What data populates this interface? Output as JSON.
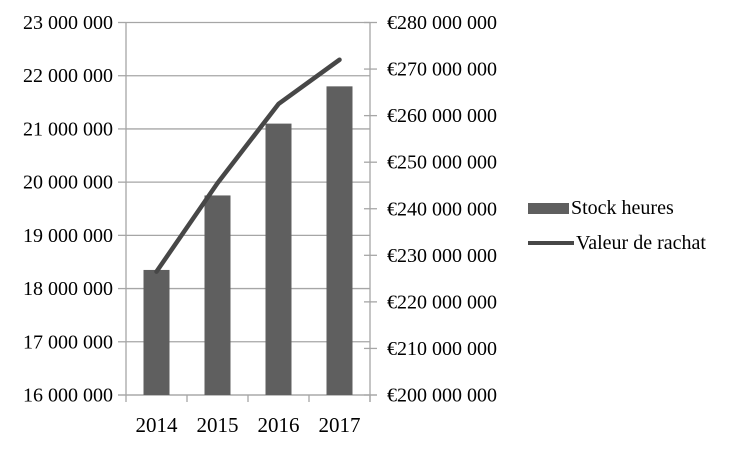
{
  "chart_data": {
    "type": "combo-bar-line-dual-axis",
    "title": "",
    "categories": [
      "2014",
      "2015",
      "2016",
      "2017"
    ],
    "series": [
      {
        "name": "Stock heures",
        "type": "bar",
        "axis": "left",
        "color": "#5f5f5f",
        "values": [
          18350000,
          19750000,
          21100000,
          21800000
        ]
      },
      {
        "name": "Valeur de rachat",
        "type": "line",
        "axis": "right",
        "color": "#474747",
        "values": [
          226500000,
          245500000,
          262500000,
          272000000
        ]
      }
    ],
    "left_axis": {
      "min": 16000000,
      "max": 23000000,
      "step": 1000000,
      "tick_labels": [
        "23 000 000",
        "22 000 000",
        "21 000 000",
        "20 000 000",
        "19 000 000",
        "18 000 000",
        "17 000 000",
        "16 000 000"
      ]
    },
    "right_axis": {
      "min": 200000000,
      "max": 280000000,
      "step": 10000000,
      "tick_labels": [
        "€280 000 000",
        "€270 000 000",
        "€260 000 000",
        "€250 000 000",
        "€240 000 000",
        "€230 000 000",
        "€220 000 000",
        "€210 000 000",
        "€200 000 000"
      ]
    },
    "grid": {
      "horizontal": true,
      "vertical": false,
      "color": "#a6a6a6"
    },
    "legend": {
      "position": "right",
      "entries": [
        "Stock heures",
        "Valeur de rachat"
      ]
    },
    "text_color": "#000000",
    "background": "#ffffff"
  }
}
